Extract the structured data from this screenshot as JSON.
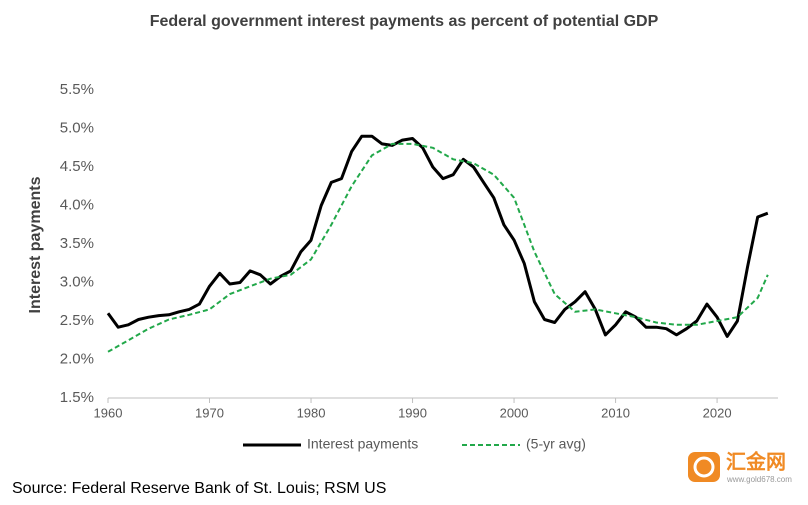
{
  "chart_data": {
    "type": "line",
    "title": "Federal government interest payments as percent of potential GDP",
    "ylabel": "Interest payments",
    "source": "Source: Federal Reserve Bank of St. Louis; RSM US",
    "watermark": {
      "name": "汇金网",
      "url": "www.gold678.com"
    },
    "xlim": [
      1960,
      2026
    ],
    "xticks": [
      1960,
      1970,
      1980,
      1990,
      2000,
      2010,
      2020
    ],
    "ylim": [
      1.5,
      5.5
    ],
    "yticks": [
      {
        "value": 1.5,
        "label": "1.5%"
      },
      {
        "value": 2.0,
        "label": "2.0%"
      },
      {
        "value": 2.5,
        "label": "2.5%"
      },
      {
        "value": 3.0,
        "label": "3.0%"
      },
      {
        "value": 3.5,
        "label": "3.5%"
      },
      {
        "value": 4.0,
        "label": "4.0%"
      },
      {
        "value": 4.5,
        "label": "4.5%"
      },
      {
        "value": 5.0,
        "label": "5.0%"
      },
      {
        "value": 5.5,
        "label": "5.5%"
      }
    ],
    "grid": false,
    "series": [
      {
        "name": "Interest payments",
        "color": "#000000",
        "dashed": false,
        "x": [
          1960,
          1961,
          1962,
          1963,
          1964,
          1965,
          1966,
          1967,
          1968,
          1969,
          1970,
          1971,
          1972,
          1973,
          1974,
          1975,
          1976,
          1977,
          1978,
          1979,
          1980,
          1981,
          1982,
          1983,
          1984,
          1985,
          1986,
          1987,
          1988,
          1989,
          1990,
          1991,
          1992,
          1993,
          1994,
          1995,
          1996,
          1997,
          1998,
          1999,
          2000,
          2001,
          2002,
          2003,
          2004,
          2005,
          2006,
          2007,
          2008,
          2009,
          2010,
          2011,
          2012,
          2013,
          2014,
          2015,
          2016,
          2017,
          2018,
          2019,
          2020,
          2021,
          2022,
          2023,
          2024,
          2025
        ],
        "values": [
          2.6,
          2.42,
          2.45,
          2.52,
          2.55,
          2.57,
          2.58,
          2.62,
          2.65,
          2.72,
          2.95,
          3.12,
          2.98,
          3.0,
          3.15,
          3.1,
          2.98,
          3.08,
          3.15,
          3.4,
          3.55,
          4.0,
          4.3,
          4.35,
          4.7,
          4.9,
          4.9,
          4.8,
          4.78,
          4.85,
          4.87,
          4.75,
          4.5,
          4.35,
          4.4,
          4.6,
          4.5,
          4.3,
          4.1,
          3.75,
          3.55,
          3.25,
          2.75,
          2.52,
          2.48,
          2.65,
          2.75,
          2.88,
          2.65,
          2.32,
          2.45,
          2.62,
          2.55,
          2.42,
          2.42,
          2.4,
          2.32,
          2.4,
          2.5,
          2.72,
          2.55,
          2.3,
          2.5,
          3.2,
          3.85,
          3.9
        ]
      },
      {
        "name": "(5-yr avg)",
        "color": "#22a84a",
        "dashed": true,
        "x": [
          1960,
          1962,
          1964,
          1966,
          1968,
          1970,
          1972,
          1974,
          1976,
          1978,
          1980,
          1982,
          1984,
          1986,
          1988,
          1990,
          1992,
          1994,
          1996,
          1998,
          2000,
          2002,
          2004,
          2006,
          2008,
          2010,
          2012,
          2014,
          2016,
          2018,
          2020,
          2022,
          2024,
          2025
        ],
        "values": [
          2.1,
          2.25,
          2.4,
          2.52,
          2.58,
          2.65,
          2.85,
          2.95,
          3.05,
          3.1,
          3.3,
          3.75,
          4.25,
          4.65,
          4.8,
          4.8,
          4.75,
          4.6,
          4.55,
          4.4,
          4.1,
          3.4,
          2.85,
          2.62,
          2.65,
          2.6,
          2.55,
          2.48,
          2.45,
          2.45,
          2.5,
          2.55,
          2.8,
          3.1
        ]
      }
    ]
  }
}
